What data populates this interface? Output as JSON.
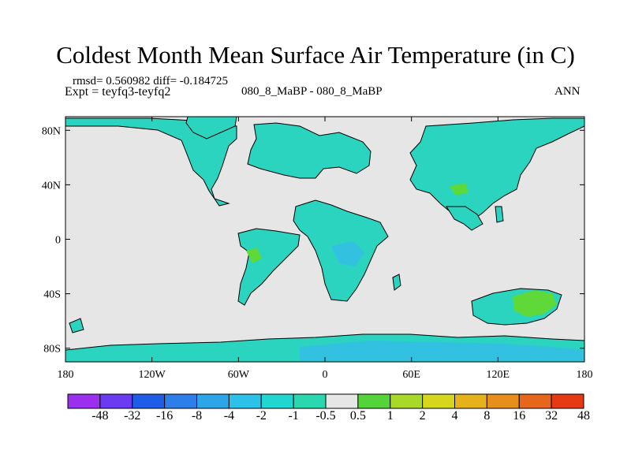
{
  "title": "Coldest Month Mean Surface Air Temperature (in C)",
  "stats": "rmsd= 0.560982 diff= -0.184725",
  "experiment": "Expt = teyfq3-teyfq2",
  "case": "080_8_MaBP - 080_8_MaBP",
  "season": "ANN",
  "map": {
    "lon_range": [
      -180,
      180
    ],
    "lat_range": [
      -90,
      90
    ],
    "lon_ticks": [
      {
        "value": -180,
        "label": "180"
      },
      {
        "value": -120,
        "label": "120W"
      },
      {
        "value": -60,
        "label": "60W"
      },
      {
        "value": 0,
        "label": "0"
      },
      {
        "value": 60,
        "label": "60E"
      },
      {
        "value": 120,
        "label": "120E"
      },
      {
        "value": 180,
        "label": "180"
      }
    ],
    "lat_ticks": [
      {
        "value": 80,
        "label": "80N"
      },
      {
        "value": 40,
        "label": "40N"
      },
      {
        "value": 0,
        "label": "0"
      },
      {
        "value": -40,
        "label": "40S"
      },
      {
        "value": -80,
        "label": "80S"
      }
    ],
    "ocean_color": "#e6e6e6",
    "land_color": "#2ad4bf",
    "cool_color": "#35bde6",
    "warm_color": "#5fd93a",
    "coast_color": "#000000"
  },
  "colorbar": {
    "colors": [
      "#9b2ff0",
      "#6a3bf0",
      "#1f5ce8",
      "#2c7ee8",
      "#2ca6e8",
      "#2cc1e8",
      "#21d6d0",
      "#2ad8b0",
      "#e6e6e6",
      "#52d43a",
      "#a8d828",
      "#d6d61c",
      "#e6b21c",
      "#e68f1c",
      "#e6661c",
      "#e63a14"
    ],
    "labels": [
      "-48",
      "-32",
      "-16",
      "-8",
      "-4",
      "-2",
      "-1",
      "-0.5",
      "0.5",
      "1",
      "2",
      "4",
      "8",
      "16",
      "32",
      "48"
    ]
  }
}
